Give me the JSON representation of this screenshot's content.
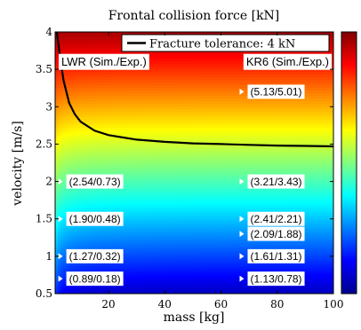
{
  "chart_data": {
    "type": "heatmap",
    "title": "Frontal collision force [kN]",
    "xlabel": "mass [kg]",
    "ylabel": "velocity [m/s]",
    "xlim": [
      1,
      100
    ],
    "ylim": [
      0.5,
      4
    ],
    "x_ticks": [
      20,
      40,
      60,
      80,
      100
    ],
    "y_ticks": [
      0.5,
      1,
      1.5,
      2,
      2.5,
      3,
      3.5,
      4
    ],
    "x_tick_labels": [
      "20",
      "40",
      "60",
      "80",
      "100"
    ],
    "y_tick_labels": [
      "0.5",
      "1",
      "1.5",
      "2",
      "2.5",
      "3",
      "3.5",
      "4"
    ],
    "colormap": "jet",
    "colorbar": true,
    "fracture_curve": {
      "label": "Fracture tolerance: 4 kN",
      "color": "#000000",
      "points": [
        [
          1.6,
          4.0
        ],
        [
          3,
          3.6
        ],
        [
          4,
          3.35
        ],
        [
          6,
          3.05
        ],
        [
          8,
          2.9
        ],
        [
          10,
          2.8
        ],
        [
          15,
          2.68
        ],
        [
          20,
          2.62
        ],
        [
          30,
          2.56
        ],
        [
          40,
          2.53
        ],
        [
          50,
          2.51
        ],
        [
          60,
          2.5
        ],
        [
          70,
          2.49
        ],
        [
          80,
          2.48
        ],
        [
          90,
          2.475
        ],
        [
          100,
          2.47
        ]
      ]
    },
    "groups": [
      {
        "label": "LWR (Sim./Exp.)",
        "marker_x": 1.5
      },
      {
        "label": "KR6 (Sim./Exp.)",
        "marker_x": 66
      }
    ],
    "annotations": [
      {
        "group": 0,
        "velocity": 0.7,
        "text": "(0.89/0.18)"
      },
      {
        "group": 0,
        "velocity": 1.0,
        "text": "(1.27/0.32)"
      },
      {
        "group": 0,
        "velocity": 1.5,
        "text": "(1.90/0.48)"
      },
      {
        "group": 0,
        "velocity": 2.0,
        "text": "(2.54/0.73)"
      },
      {
        "group": 1,
        "velocity": 0.7,
        "text": "(1.13/0.78)"
      },
      {
        "group": 1,
        "velocity": 1.0,
        "text": "(1.61/1.31)"
      },
      {
        "group": 1,
        "velocity": 1.3,
        "text": "(2.09/1.88)"
      },
      {
        "group": 1,
        "velocity": 1.5,
        "text": "(2.41/2.21)"
      },
      {
        "group": 1,
        "velocity": 2.0,
        "text": "(3.21/3.43)"
      },
      {
        "group": 1,
        "velocity": 3.2,
        "text": "(5.13/5.01)"
      }
    ],
    "grid": false,
    "legend_position": "top-right"
  }
}
